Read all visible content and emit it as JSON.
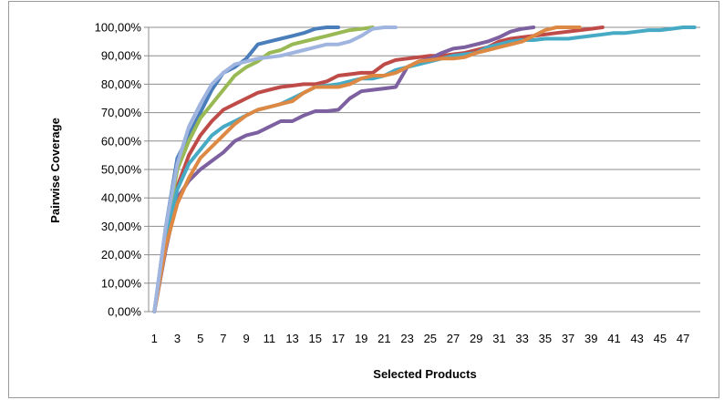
{
  "chart_data": {
    "type": "line",
    "title": "",
    "xlabel": "Selected Products",
    "ylabel": "Pairwise Coverage",
    "x_range": [
      1,
      48
    ],
    "x_tick_labels": [
      "1",
      "3",
      "5",
      "7",
      "9",
      "11",
      "13",
      "15",
      "17",
      "19",
      "21",
      "23",
      "25",
      "27",
      "29",
      "31",
      "33",
      "35",
      "37",
      "39",
      "41",
      "43",
      "45",
      "47"
    ],
    "ylim": [
      0,
      100
    ],
    "y_tick_labels": [
      "0,00%",
      "10,00%",
      "20,00%",
      "30,00%",
      "40,00%",
      "50,00%",
      "60,00%",
      "70,00%",
      "80,00%",
      "90,00%",
      "100,00%"
    ],
    "grid": "horizontal",
    "legend": "none",
    "series": [
      {
        "color": "#4a7ebb",
        "values": [
          0,
          30,
          54,
          62,
          70,
          78,
          84,
          86,
          89,
          94,
          95,
          96,
          97,
          98,
          99.5,
          100,
          100
        ]
      },
      {
        "color": "#be4b48",
        "values": [
          0,
          25,
          44,
          55,
          62,
          67,
          71,
          73,
          75,
          77,
          78,
          79,
          79.5,
          80,
          80,
          81,
          83,
          83.5,
          84,
          84,
          87,
          88.5,
          89,
          89.5,
          90,
          90,
          90.5,
          91,
          92,
          93,
          95,
          96,
          96.5,
          97,
          97.5,
          98,
          98.5,
          99,
          99.5,
          100
        ]
      },
      {
        "color": "#98b954",
        "values": [
          0,
          28,
          50,
          60,
          68,
          73,
          78,
          83,
          86,
          88,
          91,
          92,
          94,
          95,
          96,
          97,
          98,
          99,
          99.5,
          100
        ]
      },
      {
        "color": "#7d60a0",
        "values": [
          0,
          22,
          40,
          46,
          50,
          53,
          56,
          60,
          62,
          63,
          65,
          67,
          67,
          69,
          70.5,
          70.5,
          71,
          75,
          77.5,
          78,
          78.5,
          79,
          86,
          88,
          89,
          91,
          92.5,
          93,
          94,
          95,
          96.5,
          98.5,
          99.5,
          100
        ]
      },
      {
        "color": "#46aac5",
        "values": [
          0,
          26,
          43,
          52,
          57,
          62,
          65,
          67,
          69,
          71,
          72,
          73,
          75,
          77,
          79,
          79.5,
          80,
          81,
          82,
          82,
          83,
          85,
          86,
          87,
          88,
          89,
          90,
          90.5,
          91,
          93,
          94,
          95,
          95.5,
          95.5,
          96,
          96,
          96,
          96.5,
          97,
          97.5,
          98,
          98,
          98.5,
          99,
          99,
          99.5,
          100,
          100
        ]
      },
      {
        "color": "#dd8944",
        "values": [
          0,
          23,
          38,
          47,
          54,
          58,
          62,
          66,
          69,
          71,
          72,
          73,
          74,
          77,
          79,
          79,
          79,
          80,
          82,
          83,
          83,
          84,
          86,
          88,
          88.5,
          89,
          89,
          89.5,
          91,
          92,
          93,
          94,
          95,
          97,
          99,
          100,
          100,
          100
        ]
      },
      {
        "color": "#a0b4e0",
        "values": [
          0,
          30,
          52,
          65,
          73,
          80,
          84,
          87,
          88,
          89,
          89.5,
          90,
          91,
          92,
          93,
          94,
          94,
          95,
          97,
          99.5,
          100,
          100
        ]
      }
    ]
  }
}
